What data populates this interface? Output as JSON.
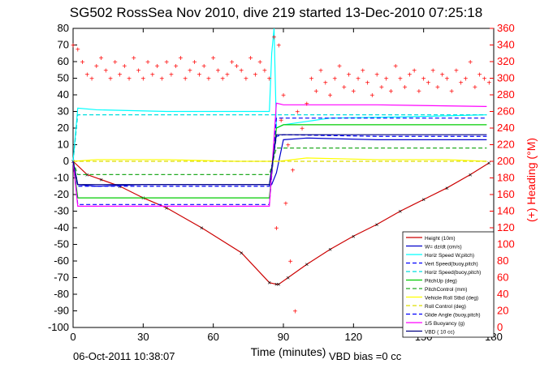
{
  "title": "SG502 RossSea Nov 2010, dive 219 started 13-Dec-2010 07:25:18",
  "footer": {
    "timestamp": "06-Oct-2011 10:38:07",
    "vbd_bias": "VBD bias =0 cc"
  },
  "colors": {
    "heading": "#ff0000",
    "height": "#cc0000",
    "w": "#0000cc",
    "horiz_speed_w": "#00ffff",
    "vert_speed": "#0000ff",
    "horiz_speed_buoy": "#00dddd",
    "pitch": "#00cc00",
    "pitch_control": "#22aa22",
    "roll": "#ffff00",
    "roll_control": "#dddd00",
    "glide_angle": "#0000ff",
    "buoyancy": "#ff00ff",
    "vbd": "#000080"
  },
  "chart_data": {
    "type": "line",
    "xlabel": "Time (minutes)",
    "ylabel_right": "(+) Heading (°M)",
    "xlim": [
      0,
      180
    ],
    "ylim": [
      -100,
      80
    ],
    "ylim_right": [
      0,
      360
    ],
    "xticks": [
      "0",
      "30",
      "60",
      "90",
      "120",
      "150",
      "180"
    ],
    "yticks_left": [
      "80",
      "70",
      "60",
      "50",
      "40",
      "30",
      "20",
      "10",
      "0",
      "-10",
      "-20",
      "-30",
      "-40",
      "-50",
      "-60",
      "-70",
      "-80",
      "-90",
      "-100"
    ],
    "yticks_right": [
      "360",
      "340",
      "320",
      "300",
      "280",
      "260",
      "240",
      "220",
      "200",
      "180",
      "160",
      "140",
      "120",
      "100",
      "80",
      "60",
      "40",
      "20",
      "0"
    ],
    "legend_position": "bottom-right",
    "legend": [
      "Height (10m)",
      "W= dz/dt (cm/s)",
      "Horiz Speed W,pitch)",
      "Vert Speed(buoy,pitch)",
      "Horiz Speed(buoy,pitch)",
      "PitchUp (deg)",
      "PitchControl (mm)",
      "Vehicle Roll Stbd (deg)",
      "Roll Control (deg)",
      "Glide Angle (buoy,pitch)",
      "1/5 Buoyancy (g)",
      "VBD ( 10 cc)"
    ],
    "series": [
      {
        "name": "Height (10m)",
        "x": [
          0,
          6,
          12,
          20,
          30,
          40,
          55,
          72,
          84,
          87,
          88,
          92,
          100,
          110,
          120,
          130,
          140,
          150,
          160,
          170,
          178
        ],
        "y": [
          0,
          -8,
          -11,
          -15,
          -22,
          -28,
          -40,
          -55,
          -73,
          -74,
          -74,
          -70,
          -62,
          -53,
          -45,
          -38,
          -30,
          -23,
          -16,
          -8,
          -1
        ]
      },
      {
        "name": "W= dz/dt (cm/s)",
        "x": [
          0,
          2,
          10,
          30,
          60,
          85,
          87,
          90,
          100,
          130,
          160,
          177
        ],
        "y": [
          0,
          -14,
          -15,
          -14,
          -14,
          -14,
          -7,
          13,
          14,
          13,
          13,
          13
        ]
      },
      {
        "name": "Horiz Speed W,pitch)",
        "x": [
          0,
          2,
          10,
          40,
          60,
          84,
          85,
          86,
          87,
          90,
          110,
          150,
          177
        ],
        "y": [
          0,
          32,
          31,
          30,
          30,
          30,
          65,
          80,
          20,
          22,
          26,
          27,
          28
        ]
      },
      {
        "name": "Vert Speed(buoy,pitch)",
        "x": [
          0,
          2,
          30,
          84,
          87,
          90,
          130,
          177
        ],
        "y": [
          0,
          -15,
          -15,
          -15,
          15,
          16,
          15,
          15
        ]
      },
      {
        "name": "Horiz Speed(buoy,pitch)",
        "x": [
          0,
          2,
          30,
          84,
          87,
          90,
          130,
          177
        ],
        "y": [
          0,
          28,
          28,
          28,
          28,
          28,
          28,
          28
        ]
      },
      {
        "name": "PitchUp (deg)",
        "x": [
          0,
          2,
          30,
          84,
          87,
          90,
          130,
          177
        ],
        "y": [
          0,
          -22,
          -22,
          -22,
          20,
          22,
          22,
          22
        ]
      },
      {
        "name": "PitchControl (mm)",
        "x": [
          0,
          2,
          30,
          84,
          87,
          90,
          130,
          177
        ],
        "y": [
          0,
          -8,
          -8,
          -8,
          8,
          8,
          8,
          8
        ]
      },
      {
        "name": "Vehicle Roll Stbd (deg)",
        "x": [
          0,
          10,
          40,
          70,
          84,
          88,
          100,
          130,
          160,
          177
        ],
        "y": [
          0,
          1,
          1,
          0,
          0,
          0,
          2,
          1,
          1,
          0
        ]
      },
      {
        "name": "Roll Control (deg)",
        "x": [
          0,
          30,
          84,
          90,
          130,
          177
        ],
        "y": [
          0,
          0,
          0,
          0,
          0,
          0
        ]
      },
      {
        "name": "Glide Angle (buoy,pitch)",
        "x": [
          0,
          2,
          30,
          84,
          87,
          90,
          130,
          177
        ],
        "y": [
          0,
          -26,
          -26,
          -26,
          26,
          26,
          26,
          26
        ]
      },
      {
        "name": "1/5 Buoyancy (g)",
        "x": [
          0,
          2,
          30,
          84,
          87,
          90,
          130,
          177
        ],
        "y": [
          0,
          -27,
          -27,
          -27,
          35,
          34,
          34,
          33
        ]
      },
      {
        "name": "VBD ( 10 cc)",
        "x": [
          0,
          2,
          30,
          84,
          87,
          90,
          130,
          177
        ],
        "y": [
          0,
          -14,
          -14,
          -14,
          16,
          16,
          16,
          16
        ]
      },
      {
        "name": "Heading",
        "axis": "right",
        "type": "scatter",
        "x": [
          0,
          2,
          4,
          6,
          8,
          10,
          12,
          14,
          16,
          18,
          20,
          22,
          24,
          26,
          28,
          30,
          32,
          34,
          36,
          38,
          40,
          42,
          44,
          46,
          48,
          50,
          52,
          54,
          56,
          58,
          60,
          62,
          64,
          66,
          68,
          70,
          72,
          74,
          76,
          78,
          80,
          82,
          84,
          86,
          87,
          88,
          89,
          90,
          91,
          92,
          93,
          94,
          95,
          96,
          98,
          100,
          102,
          104,
          106,
          108,
          110,
          112,
          114,
          116,
          118,
          120,
          122,
          124,
          126,
          128,
          130,
          132,
          134,
          136,
          138,
          140,
          142,
          144,
          146,
          148,
          150,
          152,
          154,
          156,
          158,
          160,
          162,
          164,
          166,
          168,
          170,
          172,
          174,
          176,
          178
        ],
        "y": [
          340,
          335,
          320,
          305,
          300,
          315,
          325,
          310,
          300,
          320,
          305,
          315,
          300,
          325,
          310,
          300,
          320,
          305,
          315,
          300,
          320,
          305,
          315,
          325,
          300,
          310,
          320,
          305,
          315,
          300,
          325,
          310,
          300,
          305,
          320,
          315,
          310,
          300,
          325,
          305,
          320,
          310,
          300,
          350,
          120,
          340,
          250,
          280,
          150,
          220,
          80,
          190,
          20,
          260,
          240,
          270,
          300,
          285,
          310,
          295,
          280,
          300,
          315,
          290,
          305,
          285,
          300,
          310,
          295,
          280,
          305,
          290,
          300,
          285,
          315,
          300,
          290,
          305,
          310,
          285,
          300,
          295,
          310,
          290,
          305,
          300,
          285,
          310,
          295,
          300,
          320,
          290,
          305,
          300,
          295
        ]
      }
    ]
  }
}
